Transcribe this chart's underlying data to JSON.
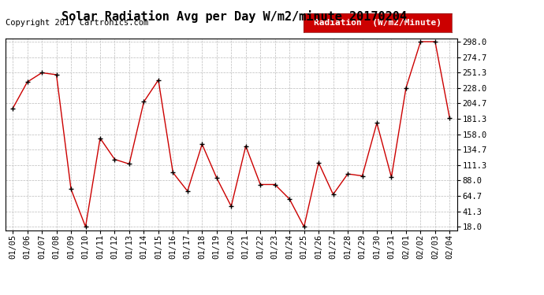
{
  "title": "Solar Radiation Avg per Day W/m2/minute 20170204",
  "copyright": "Copyright 2017 Cartronics.com",
  "legend_label": "Radiation  (W/m2/Minute)",
  "dates": [
    "01/05",
    "01/06",
    "01/07",
    "01/08",
    "01/09",
    "01/10",
    "01/11",
    "01/12",
    "01/13",
    "01/14",
    "01/15",
    "01/16",
    "01/17",
    "01/18",
    "01/19",
    "01/20",
    "01/21",
    "01/22",
    "01/23",
    "01/24",
    "01/25",
    "01/26",
    "01/27",
    "01/28",
    "01/29",
    "01/30",
    "01/31",
    "02/01",
    "02/02",
    "02/03",
    "02/04"
  ],
  "values": [
    197,
    237,
    251,
    248,
    75,
    18,
    152,
    120,
    113,
    207,
    240,
    100,
    72,
    143,
    92,
    49,
    140,
    82,
    82,
    60,
    18,
    115,
    67,
    98,
    95,
    175,
    93,
    228,
    298,
    298,
    182
  ],
  "line_color": "#cc0000",
  "marker_color": "#000000",
  "background_color": "#ffffff",
  "plot_bg_color": "#ffffff",
  "grid_color": "#bbbbbb",
  "legend_bg": "#cc0000",
  "legend_text_color": "#ffffff",
  "yticks": [
    18.0,
    41.3,
    64.7,
    88.0,
    111.3,
    134.7,
    158.0,
    181.3,
    204.7,
    228.0,
    251.3,
    274.7,
    298.0
  ],
  "ymin": 18.0,
  "ymax": 298.0,
  "title_fontsize": 11,
  "copyright_fontsize": 7.5,
  "tick_fontsize": 7.5,
  "legend_fontsize": 8
}
